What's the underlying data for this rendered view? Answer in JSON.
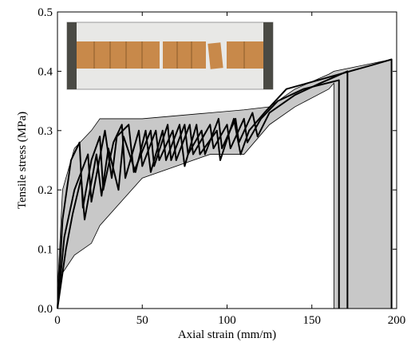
{
  "chart_data": {
    "type": "line",
    "x_label": "Axial strain (mm/m)",
    "y_label": "Tensile stress (MPa)",
    "xlim": [
      0,
      200
    ],
    "ylim": [
      0,
      0.5
    ],
    "xticks": [
      0,
      50,
      100,
      150,
      200
    ],
    "yticks": [
      {
        "value": 0,
        "label": "0.0"
      },
      0.1,
      0.2,
      0.3,
      0.4,
      0.5
    ],
    "band": {
      "color": "#c8c8c8",
      "x": [
        0,
        3,
        10,
        20,
        25,
        50,
        90,
        110,
        125,
        140,
        160,
        163,
        163,
        180,
        197
      ],
      "upper": [
        0.03,
        0.2,
        0.27,
        0.3,
        0.32,
        0.32,
        0.33,
        0.335,
        0.34,
        0.37,
        0.395,
        0.4,
        0.4,
        0.41,
        0.42
      ],
      "lower": [
        0,
        0.06,
        0.09,
        0.11,
        0.14,
        0.22,
        0.26,
        0.26,
        0.31,
        0.34,
        0.37,
        0.38,
        0,
        0,
        0
      ]
    },
    "series": [
      {
        "color": "#000000",
        "x": [
          0,
          3,
          8,
          13,
          15,
          20,
          25,
          27,
          33,
          38,
          40,
          48,
          50,
          58,
          60,
          68,
          70,
          78,
          80,
          90,
          92,
          100,
          102,
          110,
          112,
          120,
          130,
          145,
          166,
          166
        ],
        "values": [
          0,
          0.15,
          0.25,
          0.28,
          0.17,
          0.25,
          0.29,
          0.2,
          0.28,
          0.31,
          0.22,
          0.3,
          0.24,
          0.3,
          0.25,
          0.3,
          0.25,
          0.31,
          0.26,
          0.31,
          0.27,
          0.31,
          0.27,
          0.32,
          0.28,
          0.32,
          0.35,
          0.37,
          0.385,
          0
        ]
      },
      {
        "color": "#000000",
        "x": [
          0,
          4,
          10,
          18,
          20,
          28,
          32,
          35,
          42,
          45,
          55,
          57,
          65,
          67,
          75,
          77,
          85,
          87,
          95,
          97,
          105,
          107,
          115,
          118,
          125,
          140,
          155,
          171,
          171
        ],
        "values": [
          0,
          0.12,
          0.2,
          0.26,
          0.18,
          0.3,
          0.22,
          0.29,
          0.31,
          0.23,
          0.3,
          0.24,
          0.31,
          0.25,
          0.31,
          0.26,
          0.3,
          0.26,
          0.32,
          0.27,
          0.32,
          0.28,
          0.33,
          0.29,
          0.33,
          0.36,
          0.38,
          0.4,
          0
        ]
      },
      {
        "color": "#000000",
        "x": [
          0,
          5,
          9,
          14,
          16,
          23,
          26,
          30,
          36,
          39,
          46,
          52,
          55,
          62,
          64,
          72,
          75,
          82,
          84,
          94,
          96,
          104,
          108,
          113,
          122,
          135,
          160,
          185,
          197,
          197
        ],
        "values": [
          0,
          0.1,
          0.16,
          0.22,
          0.15,
          0.26,
          0.19,
          0.27,
          0.2,
          0.29,
          0.23,
          0.3,
          0.23,
          0.3,
          0.25,
          0.31,
          0.24,
          0.31,
          0.26,
          0.3,
          0.25,
          0.32,
          0.26,
          0.3,
          0.33,
          0.37,
          0.39,
          0.41,
          0.42,
          0
        ]
      }
    ]
  }
}
